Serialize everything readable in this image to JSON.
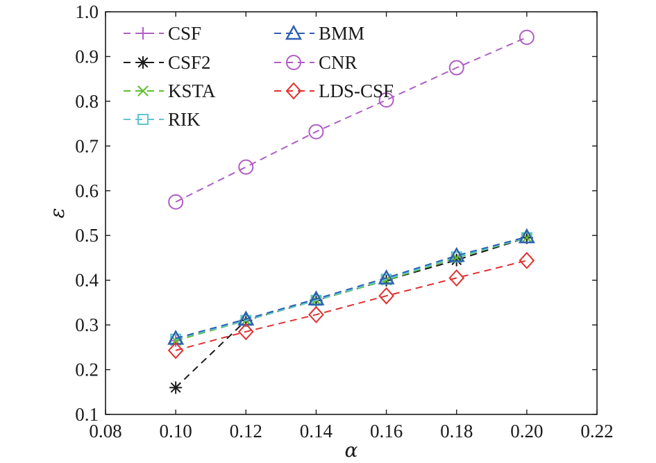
{
  "chart_data": {
    "type": "line",
    "xlabel": "α",
    "ylabel": "ε",
    "xlim": [
      0.08,
      0.22
    ],
    "ylim": [
      0.1,
      1.0
    ],
    "x_ticks": [
      "0.08",
      "0.10",
      "0.12",
      "0.14",
      "0.16",
      "0.18",
      "0.20",
      "0.22"
    ],
    "y_ticks": [
      "0.1",
      "0.2",
      "0.3",
      "0.4",
      "0.5",
      "0.6",
      "0.7",
      "0.8",
      "0.9",
      "1.0"
    ],
    "grid": false,
    "legend_position": "top-left",
    "x": [
      0.1,
      0.12,
      0.14,
      0.16,
      0.18,
      0.2
    ],
    "series": [
      {
        "name": "CSF",
        "color": "#b05cc6",
        "marker": "plus",
        "values": [
          0.265,
          0.31,
          0.355,
          0.4,
          0.445,
          0.495
        ]
      },
      {
        "name": "CSF2",
        "color": "#1a1a1a",
        "marker": "asterisk",
        "values": [
          0.16,
          0.31,
          0.355,
          0.4,
          0.445,
          0.495
        ]
      },
      {
        "name": "KSTA",
        "color": "#5bbf2a",
        "marker": "cross",
        "values": [
          0.265,
          0.31,
          0.355,
          0.4,
          0.45,
          0.495
        ]
      },
      {
        "name": "RIK",
        "color": "#5ec6d0",
        "marker": "square",
        "values": [
          0.268,
          0.31,
          0.355,
          0.402,
          0.452,
          0.495
        ]
      },
      {
        "name": "BMM",
        "color": "#2d5fb0",
        "marker": "triangle",
        "values": [
          0.27,
          0.313,
          0.358,
          0.405,
          0.455,
          0.497
        ]
      },
      {
        "name": "CNR",
        "color": "#b05cc6",
        "marker": "circle",
        "values": [
          0.575,
          0.653,
          0.732,
          0.803,
          0.875,
          0.943
        ]
      },
      {
        "name": "LDS-CSF",
        "color": "#e03030",
        "marker": "diamond",
        "values": [
          0.243,
          0.285,
          0.323,
          0.365,
          0.405,
          0.444
        ]
      }
    ],
    "legend_columns": [
      [
        "CSF",
        "CSF2",
        "KSTA",
        "RIK"
      ],
      [
        "BMM",
        "CNR",
        "LDS-CSF"
      ]
    ]
  }
}
